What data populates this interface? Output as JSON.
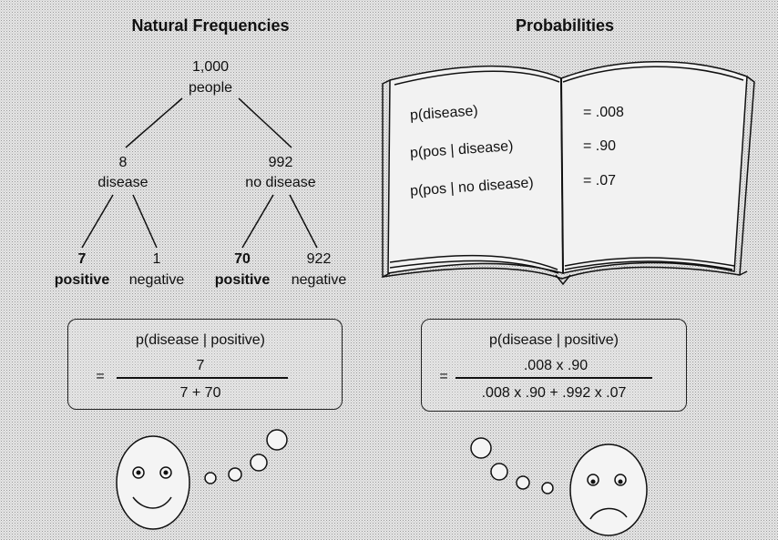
{
  "left": {
    "heading": "Natural Frequencies",
    "root": {
      "count": "1,000",
      "label": "people"
    },
    "branch_disease": {
      "count": "8",
      "label": "disease"
    },
    "branch_no_disease": {
      "count": "992",
      "label": "no disease"
    },
    "leaves": [
      {
        "count": "7",
        "label": "positive",
        "bold": true
      },
      {
        "count": "1",
        "label": "negative",
        "bold": false
      },
      {
        "count": "70",
        "label": "positive",
        "bold": true
      },
      {
        "count": "922",
        "label": "negative",
        "bold": false
      }
    ],
    "formula": {
      "title": "p(disease | positive)",
      "equals": "=",
      "numerator": "7",
      "denominator": "7 + 70"
    }
  },
  "right": {
    "heading": "Probabilities",
    "book": {
      "rows": [
        {
          "label": "p(disease)",
          "value": "= .008"
        },
        {
          "label": "p(pos | disease)",
          "value": "= .90"
        },
        {
          "label": "p(pos | no disease)",
          "value": "= .07"
        }
      ]
    },
    "formula": {
      "title": "p(disease | positive)",
      "equals": "=",
      "numerator": ".008 x .90",
      "denominator": ".008 x .90 + .992 x .07"
    }
  },
  "faces": {
    "left": "happy-face",
    "right": "sad-face"
  }
}
